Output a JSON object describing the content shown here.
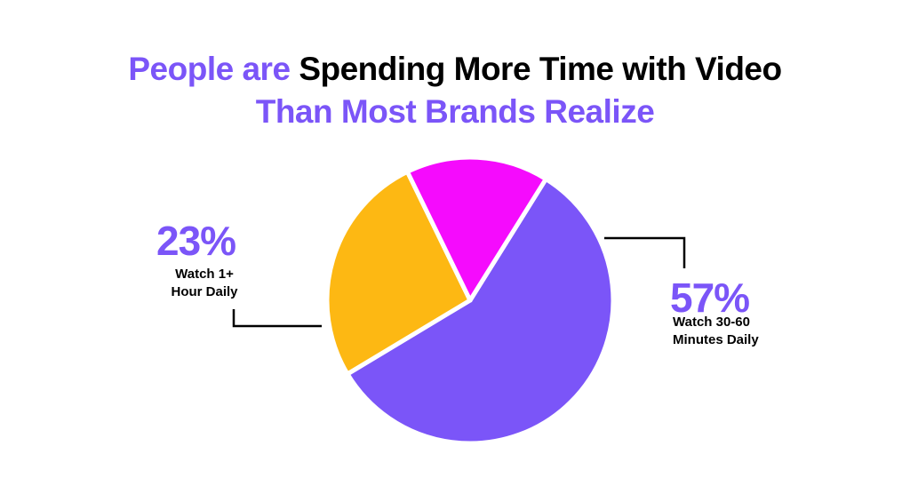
{
  "title": {
    "line1_part1": "People are",
    "line1_part2": "Spending More Time with Video",
    "line2": "Than Most Brands Realize"
  },
  "colors": {
    "purple": "#7B55F8",
    "yellow": "#FDB813",
    "magenta": "#F50BFD",
    "black": "#000000"
  },
  "labels": {
    "left": {
      "value": "23%",
      "line1": "Watch 1+",
      "line2": "Hour Daily"
    },
    "right": {
      "value": "57%",
      "line1": "Watch 30-60",
      "line2": "Minutes Daily"
    }
  },
  "chart_data": {
    "type": "pie",
    "title": "People are Spending More Time with Video Than Most Brands Realize",
    "categories": [
      "Watch 30-60 Minutes Daily",
      "Watch 1+ Hour Daily",
      "Other (unlabeled)"
    ],
    "values": [
      57,
      23,
      20
    ],
    "colors": [
      "#7B55F8",
      "#FDB813",
      "#F50BFD"
    ],
    "data_labels": [
      "57%",
      "23%",
      ""
    ],
    "legend": "none (callout labels with leader lines)"
  }
}
